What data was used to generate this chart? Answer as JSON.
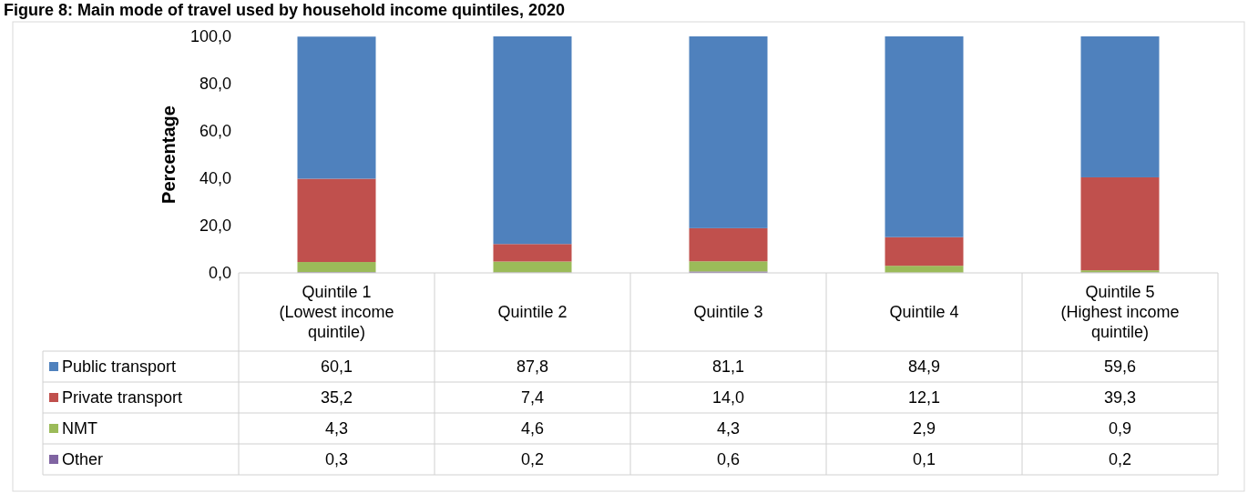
{
  "chart_data": {
    "type": "bar",
    "stacked": true,
    "title": "Figure 8: Main mode of travel used by household income quintiles, 2020",
    "ylabel": "Percentage",
    "categories": [
      "Quintile 1 (Lowest income quintile)",
      "Quintile 2",
      "Quintile 3",
      "Quintile 4",
      "Quintile 5 (Highest income quintile)"
    ],
    "ylim": [
      0,
      100
    ],
    "yticks": [
      {
        "value": 0,
        "label": "0,0"
      },
      {
        "value": 20,
        "label": "20,0"
      },
      {
        "value": 40,
        "label": "40,0"
      },
      {
        "value": 60,
        "label": "60,0"
      },
      {
        "value": 80,
        "label": "80,0"
      },
      {
        "value": 100,
        "label": "100,0"
      }
    ],
    "legend": "bottom",
    "grid": false,
    "series": [
      {
        "name": "Other",
        "color": "#8064a2",
        "values": [
          0.3,
          0.2,
          0.6,
          0.1,
          0.2
        ],
        "value_labels": [
          "0,3",
          "0,2",
          "0,6",
          "0,1",
          "0,2"
        ]
      },
      {
        "name": "NMT",
        "color": "#9bbb59",
        "values": [
          4.3,
          4.6,
          4.3,
          2.9,
          0.9
        ],
        "value_labels": [
          "4,3",
          "4,6",
          "4,3",
          "2,9",
          "0,9"
        ]
      },
      {
        "name": "Private transport",
        "color": "#c0504d",
        "values": [
          35.2,
          7.4,
          14.0,
          12.1,
          39.3
        ],
        "value_labels": [
          "35,2",
          "7,4",
          "14,0",
          "12,1",
          "39,3"
        ]
      },
      {
        "name": "Public transport",
        "color": "#4f81bd",
        "values": [
          60.1,
          87.8,
          81.1,
          84.9,
          59.6
        ],
        "value_labels": [
          "60,1",
          "87,8",
          "81,1",
          "84,9",
          "59,6"
        ]
      }
    ]
  }
}
